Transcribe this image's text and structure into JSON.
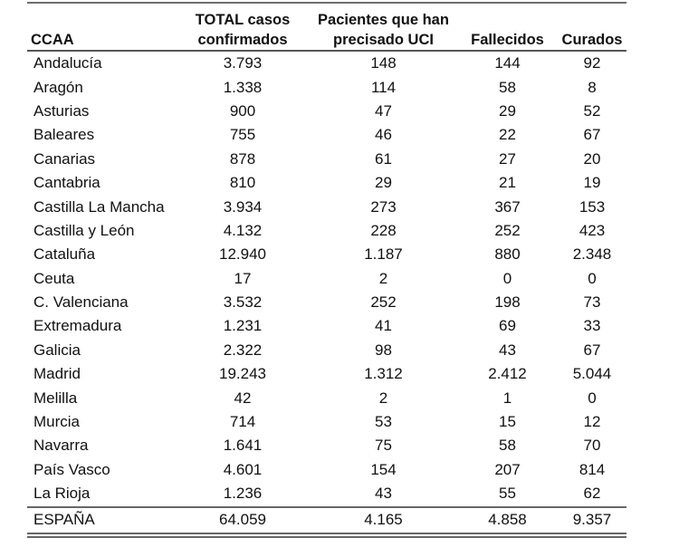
{
  "table": {
    "headers": [
      [
        "CCAA"
      ],
      [
        "TOTAL casos",
        "confirmados"
      ],
      [
        "Pacientes que han",
        "precisado UCI"
      ],
      [
        "Fallecidos"
      ],
      [
        "Curados"
      ]
    ],
    "rows": [
      [
        "Andalucía",
        "3.793",
        "148",
        "144",
        "92"
      ],
      [
        "Aragón",
        "1.338",
        "114",
        "58",
        "8"
      ],
      [
        "Asturias",
        "900",
        "47",
        "29",
        "52"
      ],
      [
        "Baleares",
        "755",
        "46",
        "22",
        "67"
      ],
      [
        "Canarias",
        "878",
        "61",
        "27",
        "20"
      ],
      [
        "Cantabria",
        "810",
        "29",
        "21",
        "19"
      ],
      [
        "Castilla La Mancha",
        "3.934",
        "273",
        "367",
        "153"
      ],
      [
        "Castilla y León",
        "4.132",
        "228",
        "252",
        "423"
      ],
      [
        "Cataluña",
        "12.940",
        "1.187",
        "880",
        "2.348"
      ],
      [
        "Ceuta",
        "17",
        "2",
        "0",
        "0"
      ],
      [
        "C. Valenciana",
        "3.532",
        "252",
        "198",
        "73"
      ],
      [
        "Extremadura",
        "1.231",
        "41",
        "69",
        "33"
      ],
      [
        "Galicia",
        "2.322",
        "98",
        "43",
        "67"
      ],
      [
        "Madrid",
        "19.243",
        "1.312",
        "2.412",
        "5.044"
      ],
      [
        "Melilla",
        "42",
        "2",
        "1",
        "0"
      ],
      [
        "Murcia",
        "714",
        "53",
        "15",
        "12"
      ],
      [
        "Navarra",
        "1.641",
        "75",
        "58",
        "70"
      ],
      [
        "País Vasco",
        "4.601",
        "154",
        "207",
        "814"
      ],
      [
        "La Rioja",
        "1.236",
        "43",
        "55",
        "62"
      ]
    ],
    "total": [
      "ESPAÑA",
      "64.059",
      "4.165",
      "4.858",
      "9.357"
    ]
  }
}
